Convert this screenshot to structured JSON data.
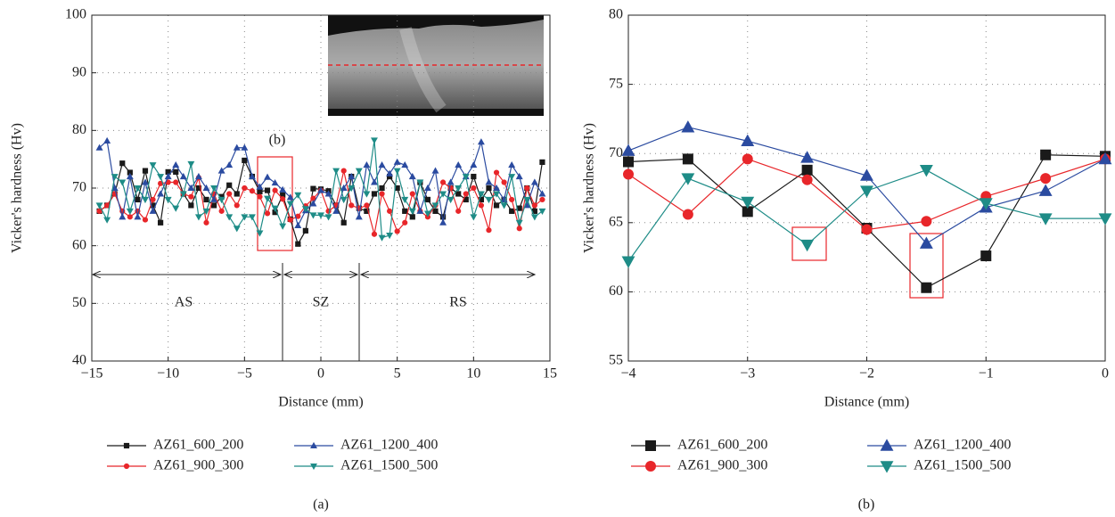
{
  "chart_data": [
    {
      "type": "line",
      "caption": "(a)",
      "xlabel": "Distance (mm)",
      "ylabel": "Vicker's hardness (Hv)",
      "annotations": [
        "(b)",
        "AS",
        "SZ",
        "RS"
      ],
      "xlim": [
        -15,
        15
      ],
      "ylim": [
        40,
        100
      ],
      "xticks": [
        {
          "value": -15,
          "label": "−15"
        },
        {
          "value": -10,
          "label": "−10"
        },
        {
          "value": -5,
          "label": "−5"
        },
        0,
        5,
        10,
        15
      ],
      "yticks": [
        40,
        50,
        60,
        70,
        80,
        90,
        100
      ],
      "grid": true,
      "x": [
        -14.5,
        -14,
        -13.5,
        -13,
        -12.5,
        -12,
        -11.5,
        -11,
        -10.5,
        -10,
        -9.5,
        -9,
        -8.5,
        -8,
        -7.5,
        -7,
        -6.5,
        -6,
        -5.5,
        -5,
        -4.5,
        -4,
        -3.5,
        -3,
        -2.5,
        -2,
        -1.5,
        -1,
        -0.5,
        0,
        0.5,
        1,
        1.5,
        2,
        2.5,
        3,
        3.5,
        4,
        4.5,
        5,
        5.5,
        6,
        6.5,
        7,
        7.5,
        8,
        8.5,
        9,
        9.5,
        10,
        10.5,
        11,
        11.5,
        12,
        12.5,
        13,
        13.5,
        14,
        14.5
      ],
      "series": [
        {
          "name": "AZ61_600_200",
          "color": "#1a1a1a",
          "marker": "square",
          "values": [
            66,
            67,
            69,
            74.3,
            72.7,
            68,
            73,
            67,
            64,
            72.8,
            72.8,
            69,
            67,
            70,
            68,
            67,
            68.5,
            70.5,
            69,
            74.8,
            72,
            69.4,
            69.6,
            65.8,
            68.8,
            64.6,
            60.3,
            62.6,
            69.9,
            69.8,
            69.5,
            67,
            64,
            72,
            66.5,
            66,
            69,
            70,
            72,
            70,
            66,
            65,
            71,
            68,
            66,
            65,
            70,
            69,
            68,
            72,
            68,
            70,
            67,
            68,
            66,
            66.5,
            70,
            66,
            74.5
          ]
        },
        {
          "name": "AZ61_900_300",
          "color": "#e8262a",
          "marker": "circle",
          "values": [
            66,
            67,
            69,
            66,
            65,
            66,
            64.5,
            68,
            70.8,
            71,
            71,
            69,
            68.5,
            71.8,
            64,
            69,
            66,
            69,
            67,
            70,
            69.5,
            68.5,
            65.6,
            69.6,
            68.1,
            64.5,
            65.1,
            66.9,
            68.2,
            69.6,
            66,
            67,
            73,
            67,
            66.5,
            67,
            62,
            69,
            66,
            62.5,
            64,
            69,
            66,
            65,
            67,
            71,
            70,
            66,
            69,
            70,
            67,
            62.7,
            72.7,
            71,
            68,
            63,
            70,
            67,
            68
          ]
        },
        {
          "name": "AZ61_1200_400",
          "color": "#2b4ba0",
          "marker": "triangle-up",
          "values": [
            77,
            78.2,
            70,
            65,
            72,
            65,
            71,
            66,
            69,
            72,
            74,
            72,
            70,
            72,
            70,
            68,
            73,
            74,
            77,
            77,
            72,
            70.2,
            71.9,
            70.9,
            69.7,
            68.4,
            63.5,
            66.1,
            67.3,
            69.6,
            69,
            66,
            70,
            72,
            65,
            74,
            71,
            74,
            72.5,
            74.5,
            74,
            72,
            66,
            70,
            73,
            64,
            71,
            74,
            72,
            74,
            78,
            71,
            70,
            68,
            74,
            72,
            67,
            71,
            69
          ]
        },
        {
          "name": "AZ61_1500_500",
          "color": "#1e8c87",
          "marker": "triangle-down",
          "values": [
            67,
            64.5,
            72,
            71,
            66,
            70,
            68,
            74,
            72,
            68,
            66.5,
            69,
            74.2,
            65,
            66,
            70,
            68,
            65,
            63,
            65,
            65,
            62.2,
            68.2,
            66.5,
            63.4,
            67.3,
            68.8,
            66.4,
            65.3,
            65.3,
            65,
            73,
            68,
            70,
            73,
            69,
            78.3,
            61.4,
            61.8,
            73,
            68,
            66,
            71,
            65.6,
            67,
            69,
            68,
            70,
            72,
            65,
            69,
            68,
            69,
            67,
            72,
            64,
            68,
            65,
            66
          ]
        }
      ]
    },
    {
      "type": "line",
      "caption": "(b)",
      "xlabel": "Distance (mm)",
      "ylabel": "Vicker's hardness (Hv)",
      "xlim": [
        -4,
        0
      ],
      "ylim": [
        55,
        80
      ],
      "xticks": [
        {
          "value": -4,
          "label": "−4"
        },
        {
          "value": -3,
          "label": "−3"
        },
        {
          "value": -2,
          "label": "−2"
        },
        {
          "value": -1,
          "label": "−1"
        },
        0
      ],
      "yticks": [
        55,
        60,
        65,
        70,
        75,
        80
      ],
      "grid": true,
      "x": [
        -4,
        -3.5,
        -3,
        -2.5,
        -2,
        -1.5,
        -1,
        -0.5,
        0
      ],
      "series": [
        {
          "name": "AZ61_600_200",
          "color": "#1a1a1a",
          "marker": "square",
          "values": [
            69.4,
            69.6,
            65.8,
            68.8,
            64.6,
            60.3,
            62.6,
            69.9,
            69.8
          ]
        },
        {
          "name": "AZ61_900_300",
          "color": "#e8262a",
          "marker": "circle",
          "values": [
            68.5,
            65.6,
            69.6,
            68.1,
            64.5,
            65.1,
            66.9,
            68.2,
            69.6
          ]
        },
        {
          "name": "AZ61_1200_400",
          "color": "#2b4ba0",
          "marker": "triangle-up",
          "values": [
            70.2,
            71.9,
            70.9,
            69.7,
            68.4,
            63.5,
            66.1,
            67.3,
            69.6
          ]
        },
        {
          "name": "AZ61_1500_500",
          "color": "#1e8c87",
          "marker": "triangle-down",
          "values": [
            62.2,
            68.2,
            66.5,
            63.4,
            67.3,
            68.8,
            66.4,
            65.3,
            65.3
          ]
        }
      ]
    }
  ]
}
